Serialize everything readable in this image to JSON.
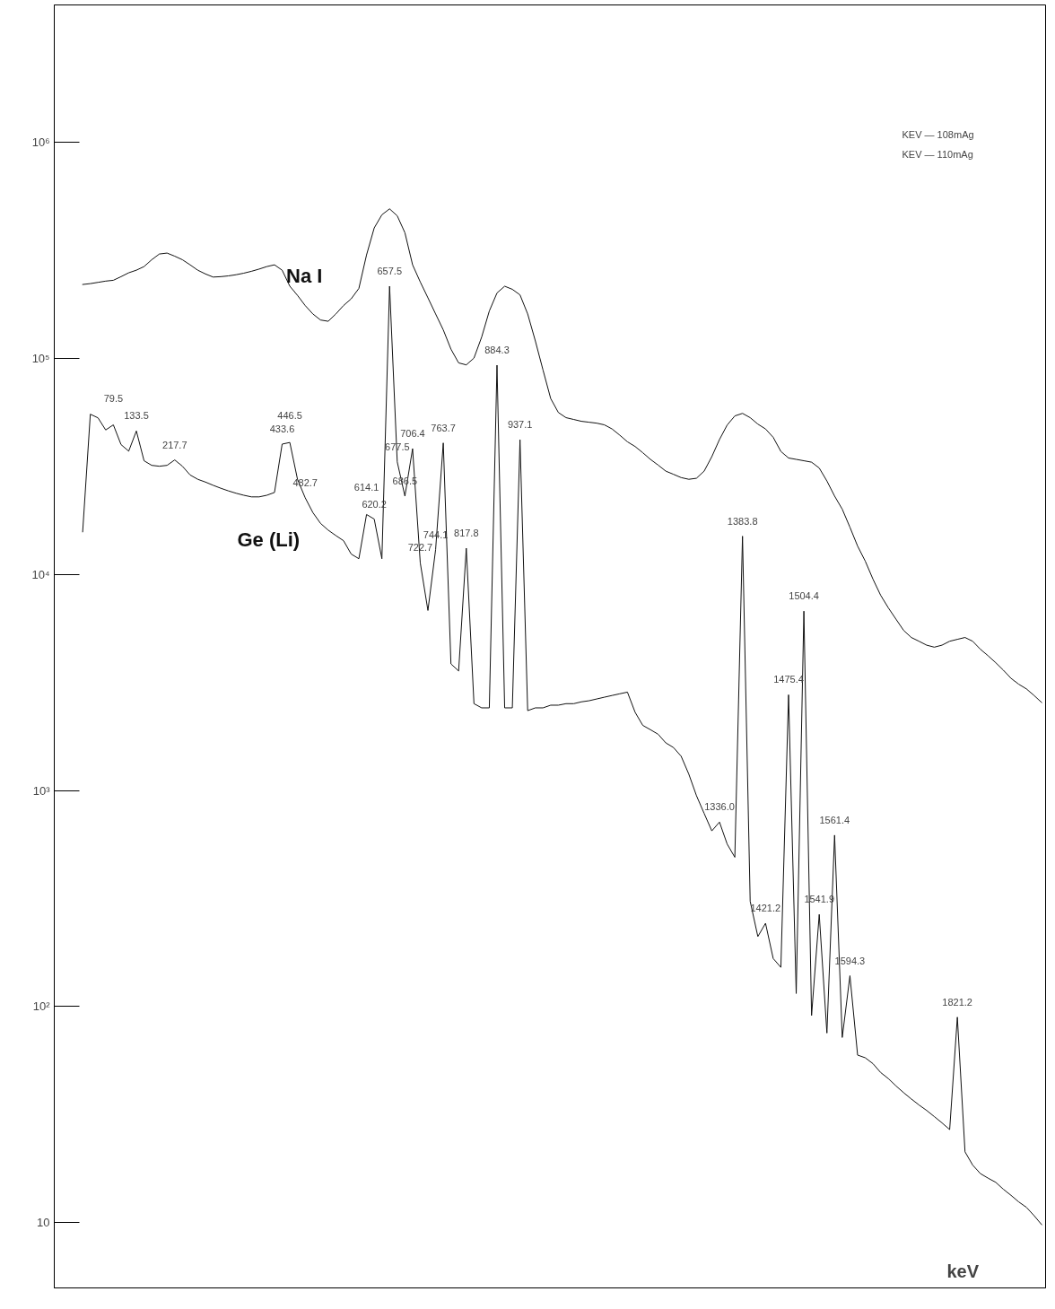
{
  "chart_data": {
    "type": "line",
    "xlabel": "keV",
    "log": true,
    "grid": false,
    "legend": false,
    "tick_labels": "y",
    "marker": "none",
    "line_style": "solid",
    "ylim": [
      5,
      4300000
    ],
    "yticks": [
      {
        "value": 10,
        "label": "10"
      },
      {
        "value": 100,
        "label": "10²"
      },
      {
        "value": 1000,
        "label": "10³"
      },
      {
        "value": 10000,
        "label": "10⁴"
      },
      {
        "value": 100000,
        "label": "10⁵"
      },
      {
        "value": 1000000,
        "label": "10⁶"
      }
    ],
    "categories": [
      null,
      null,
      null,
      null,
      null,
      null,
      null,
      null,
      null,
      null,
      null,
      null,
      null,
      null,
      null,
      null,
      null,
      null,
      null,
      null,
      null,
      null,
      null,
      null,
      null,
      null,
      null,
      null,
      null,
      null,
      null,
      null,
      null,
      null,
      null,
      null,
      null,
      null,
      null,
      null,
      null,
      null,
      null,
      null,
      null,
      null,
      null,
      null,
      null,
      null,
      null,
      null,
      null,
      null,
      null,
      null,
      null,
      null,
      null,
      null,
      null,
      null,
      null,
      null,
      null,
      null,
      null,
      null,
      null,
      null,
      null,
      null,
      null,
      null,
      null,
      null,
      null,
      null,
      null,
      null,
      null,
      null,
      null,
      null,
      null,
      null,
      null,
      null,
      null,
      null,
      null,
      null,
      null,
      null,
      null,
      null,
      null,
      null,
      null,
      null,
      null,
      null,
      null,
      null,
      null,
      null,
      null,
      null,
      null,
      null,
      null,
      null,
      null,
      null,
      null,
      null,
      null,
      null,
      null,
      null,
      null,
      null,
      null,
      null,
      null,
      null
    ],
    "series": [
      {
        "name": "Na I",
        "color": "#111111",
        "values": [
          219000,
          221000,
          224000,
          227000,
          229000,
          238000,
          248000,
          255000,
          265000,
          285000,
          303000,
          306000,
          296000,
          285000,
          270000,
          255000,
          245000,
          237000,
          238000,
          240000,
          243000,
          247000,
          252000,
          258000,
          265000,
          270000,
          255000,
          215000,
          195000,
          175000,
          160000,
          150000,
          148000,
          160000,
          175000,
          188000,
          210000,
          300000,
          400000,
          460000,
          490000,
          455000,
          380000,
          270000,
          225000,
          190000,
          160000,
          135000,
          110000,
          95000,
          93000,
          100000,
          125000,
          165000,
          200000,
          215000,
          208000,
          196000,
          160000,
          120000,
          88000,
          65000,
          56000,
          53000,
          52000,
          51000,
          50500,
          50000,
          49100,
          47000,
          44000,
          41000,
          39000,
          36500,
          34000,
          32000,
          30000,
          29000,
          28000,
          27500,
          27800,
          30000,
          35000,
          42000,
          49000,
          54000,
          55500,
          53000,
          49500,
          47000,
          43000,
          37000,
          34500,
          34000,
          33500,
          33000,
          31000,
          27000,
          23000,
          20000,
          16500,
          13500,
          11500,
          9500,
          8000,
          7000,
          6200,
          5500,
          5100,
          4900,
          4700,
          4600,
          4700,
          4900,
          5000,
          5100,
          4900,
          4500,
          4200,
          3900,
          3600,
          3300,
          3100,
          2950,
          2750,
          2550
        ]
      },
      {
        "name": "Ge (Li)",
        "color": "#111111",
        "values": [
          15700,
          55000,
          52900,
          46500,
          49100,
          39800,
          37100,
          46000,
          33500,
          31900,
          31600,
          31900,
          33800,
          31600,
          28800,
          27500,
          26700,
          25800,
          25000,
          24300,
          23700,
          23200,
          22800,
          22800,
          23200,
          23900,
          40000,
          40700,
          27500,
          22600,
          19300,
          17200,
          16000,
          15100,
          14300,
          12400,
          11800,
          18900,
          18000,
          11800,
          215000,
          33100,
          23000,
          38100,
          11300,
          6800,
          13000,
          40500,
          3850,
          3570,
          13200,
          2520,
          2410,
          2410,
          92700,
          2410,
          2410,
          41900,
          2340,
          2410,
          2410,
          2480,
          2480,
          2520,
          2520,
          2570,
          2600,
          2650,
          2700,
          2750,
          2800,
          2850,
          2300,
          2000,
          1910,
          1820,
          1660,
          1580,
          1440,
          1190,
          946,
          783,
          650,
          714,
          565,
          491,
          15000,
          307,
          211,
          243,
          167,
          152,
          2770,
          115,
          6750,
          91,
          267,
          75.5,
          621,
          72,
          139,
          59.7,
          58,
          54.5,
          49.6,
          46.5,
          43,
          40,
          37.4,
          35.1,
          33.1,
          31,
          29,
          27,
          89.4,
          21.3,
          18.5,
          16.9,
          16.1,
          15.4,
          14.3,
          13.4,
          12.5,
          11.8,
          10.8,
          9.8
        ]
      }
    ],
    "annotations": [
      "KEV — 108mAg",
      "KEV — 110mAg",
      {
        "text": "79.5",
        "y": 49100
      },
      {
        "text": "133.5",
        "y": 46000
      },
      {
        "text": "217.7",
        "y": 33800
      },
      {
        "text": "433.6",
        "y": 40000
      },
      {
        "text": "446.5",
        "y": 40700
      },
      {
        "text": "482.7",
        "y": 22600
      },
      {
        "text": "614.1",
        "y": 18900
      },
      {
        "text": "620.2",
        "y": 18000
      },
      {
        "text": "657.5",
        "y": 215000
      },
      {
        "text": "677.5",
        "y": 33100
      },
      {
        "text": "686.5",
        "y": 23000
      },
      {
        "text": "706.4",
        "y": 38100
      },
      {
        "text": "722.7",
        "y": 11300
      },
      {
        "text": "744.1",
        "y": 13000
      },
      {
        "text": "763.7",
        "y": 40500
      },
      {
        "text": "817.8",
        "y": 13200
      },
      {
        "text": "884.3",
        "y": 92700
      },
      {
        "text": "937.1",
        "y": 41900
      },
      {
        "text": "1336.0",
        "y": 714
      },
      {
        "text": "1383.8",
        "y": 15000
      },
      {
        "text": "1421.2",
        "y": 243
      },
      {
        "text": "1475.4",
        "y": 2770
      },
      {
        "text": "1504.4",
        "y": 6750
      },
      {
        "text": "1541.9",
        "y": 267
      },
      {
        "text": "1561.4",
        "y": 621
      },
      {
        "text": "1594.3",
        "y": 139
      },
      {
        "text": "1821.2",
        "y": 89.4
      }
    ]
  }
}
